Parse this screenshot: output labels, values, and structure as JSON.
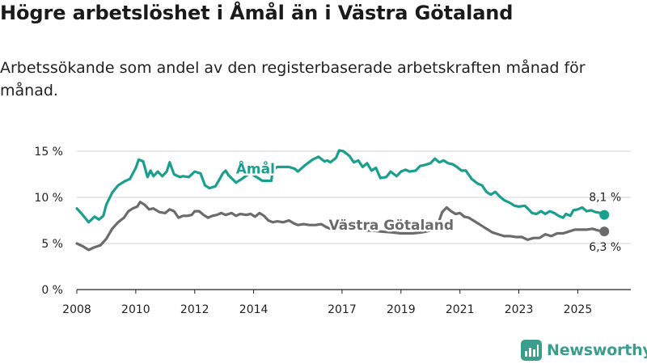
{
  "page": {
    "title": "Högre arbetslöshet i Åmål än i Västra Götaland",
    "subtitle": "Arbetssökande som andel av den registerbaserade arbetskraften månad för månad.",
    "brand": "Newsworthy"
  },
  "chart_data": {
    "type": "line",
    "title": "Högre arbetslöshet i Åmål än i Västra Götaland",
    "subtitle": "Arbetssökande som andel av den registerbaserade arbetskraften månad för månad.",
    "xlabel": "",
    "ylabel": "",
    "xlim": [
      2008,
      2026.8
    ],
    "ylim": [
      0,
      15
    ],
    "grid": true,
    "x_ticks": [
      {
        "value": 2008,
        "label": "2008"
      },
      {
        "value": 2010,
        "label": "2010"
      },
      {
        "value": 2012,
        "label": "2012"
      },
      {
        "value": 2014,
        "label": "2014"
      },
      {
        "value": 2017,
        "label": "2017"
      },
      {
        "value": 2019,
        "label": "2019"
      },
      {
        "value": 2021,
        "label": "2021"
      },
      {
        "value": 2023,
        "label": "2023"
      },
      {
        "value": 2025,
        "label": "2025"
      }
    ],
    "y_ticks": [
      {
        "value": 0,
        "label": "0 %"
      },
      {
        "value": 5,
        "label": "5 %"
      },
      {
        "value": 10,
        "label": "10 %"
      },
      {
        "value": 15,
        "label": "15 %"
      }
    ],
    "series": [
      {
        "name": "Åmål",
        "color": "#1a9f8f",
        "end_label": "8,1 %",
        "points": [
          [
            2008.0,
            8.8
          ],
          [
            2008.2,
            8.1
          ],
          [
            2008.4,
            7.3
          ],
          [
            2008.5,
            7.6
          ],
          [
            2008.6,
            7.9
          ],
          [
            2008.75,
            7.6
          ],
          [
            2008.9,
            8.0
          ],
          [
            2009.0,
            9.2
          ],
          [
            2009.2,
            10.5
          ],
          [
            2009.4,
            11.3
          ],
          [
            2009.6,
            11.7
          ],
          [
            2009.8,
            12.0
          ],
          [
            2010.0,
            13.2
          ],
          [
            2010.1,
            14.1
          ],
          [
            2010.25,
            13.9
          ],
          [
            2010.4,
            12.2
          ],
          [
            2010.5,
            12.9
          ],
          [
            2010.6,
            12.3
          ],
          [
            2010.75,
            12.8
          ],
          [
            2010.9,
            12.3
          ],
          [
            2011.05,
            12.8
          ],
          [
            2011.15,
            13.8
          ],
          [
            2011.3,
            12.5
          ],
          [
            2011.5,
            12.2
          ],
          [
            2011.6,
            12.3
          ],
          [
            2011.8,
            12.2
          ],
          [
            2012.0,
            12.8
          ],
          [
            2012.2,
            12.6
          ],
          [
            2012.35,
            11.3
          ],
          [
            2012.5,
            11.0
          ],
          [
            2012.7,
            11.2
          ],
          [
            2012.85,
            12.0
          ],
          [
            2012.95,
            12.6
          ],
          [
            2013.05,
            12.9
          ],
          [
            2013.15,
            12.4
          ],
          [
            2013.4,
            11.6
          ],
          [
            2013.6,
            12.0
          ],
          [
            2013.9,
            12.7
          ],
          [
            2014.0,
            12.4
          ],
          [
            2014.3,
            11.8
          ],
          [
            2014.6,
            11.8
          ],
          [
            2014.65,
            13.0
          ],
          [
            2014.8,
            13.3
          ],
          [
            2015.0,
            13.3
          ],
          [
            2015.2,
            13.3
          ],
          [
            2015.4,
            13.1
          ],
          [
            2015.5,
            12.8
          ],
          [
            2015.75,
            13.5
          ],
          [
            2016.0,
            14.1
          ],
          [
            2016.2,
            14.4
          ],
          [
            2016.4,
            13.9
          ],
          [
            2016.5,
            14.0
          ],
          [
            2016.6,
            13.8
          ],
          [
            2016.8,
            14.3
          ],
          [
            2016.9,
            15.1
          ],
          [
            2017.05,
            15.0
          ],
          [
            2017.25,
            14.5
          ],
          [
            2017.4,
            13.8
          ],
          [
            2017.55,
            14.0
          ],
          [
            2017.7,
            13.3
          ],
          [
            2017.85,
            13.7
          ],
          [
            2018.0,
            12.9
          ],
          [
            2018.15,
            13.2
          ],
          [
            2018.3,
            12.1
          ],
          [
            2018.5,
            12.2
          ],
          [
            2018.65,
            12.8
          ],
          [
            2018.85,
            12.3
          ],
          [
            2019.0,
            12.8
          ],
          [
            2019.15,
            13.0
          ],
          [
            2019.3,
            12.8
          ],
          [
            2019.5,
            12.9
          ],
          [
            2019.65,
            13.4
          ],
          [
            2019.8,
            13.5
          ],
          [
            2020.0,
            13.7
          ],
          [
            2020.15,
            14.2
          ],
          [
            2020.3,
            13.8
          ],
          [
            2020.45,
            14.0
          ],
          [
            2020.6,
            13.7
          ],
          [
            2020.75,
            13.6
          ],
          [
            2020.9,
            13.3
          ],
          [
            2021.05,
            12.9
          ],
          [
            2021.2,
            12.9
          ],
          [
            2021.4,
            12.0
          ],
          [
            2021.6,
            11.5
          ],
          [
            2021.75,
            11.3
          ],
          [
            2021.9,
            10.6
          ],
          [
            2022.05,
            10.3
          ],
          [
            2022.2,
            10.6
          ],
          [
            2022.35,
            10.1
          ],
          [
            2022.5,
            9.7
          ],
          [
            2022.7,
            9.4
          ],
          [
            2022.85,
            9.1
          ],
          [
            2023.0,
            9.0
          ],
          [
            2023.2,
            9.1
          ],
          [
            2023.3,
            8.8
          ],
          [
            2023.45,
            8.3
          ],
          [
            2023.6,
            8.2
          ],
          [
            2023.75,
            8.5
          ],
          [
            2023.9,
            8.2
          ],
          [
            2024.05,
            8.5
          ],
          [
            2024.2,
            8.3
          ],
          [
            2024.35,
            8.0
          ],
          [
            2024.5,
            7.8
          ],
          [
            2024.6,
            8.2
          ],
          [
            2024.75,
            8.0
          ],
          [
            2024.85,
            8.6
          ],
          [
            2025.0,
            8.7
          ],
          [
            2025.15,
            8.9
          ],
          [
            2025.3,
            8.5
          ],
          [
            2025.45,
            8.6
          ],
          [
            2025.6,
            8.4
          ],
          [
            2025.8,
            8.3
          ],
          [
            2025.9,
            8.1
          ]
        ]
      },
      {
        "name": "Västra Götaland",
        "color": "#6b6b6b",
        "end_label": "6,3 %",
        "points": [
          [
            2008.0,
            5.0
          ],
          [
            2008.2,
            4.7
          ],
          [
            2008.4,
            4.3
          ],
          [
            2008.6,
            4.6
          ],
          [
            2008.8,
            4.8
          ],
          [
            2009.0,
            5.5
          ],
          [
            2009.2,
            6.6
          ],
          [
            2009.4,
            7.3
          ],
          [
            2009.6,
            7.8
          ],
          [
            2009.75,
            8.5
          ],
          [
            2009.9,
            8.8
          ],
          [
            2010.05,
            9.0
          ],
          [
            2010.15,
            9.5
          ],
          [
            2010.3,
            9.2
          ],
          [
            2010.45,
            8.7
          ],
          [
            2010.6,
            8.8
          ],
          [
            2010.8,
            8.4
          ],
          [
            2011.0,
            8.3
          ],
          [
            2011.15,
            8.7
          ],
          [
            2011.3,
            8.5
          ],
          [
            2011.45,
            7.8
          ],
          [
            2011.6,
            8.0
          ],
          [
            2011.75,
            8.0
          ],
          [
            2011.9,
            8.1
          ],
          [
            2012.0,
            8.5
          ],
          [
            2012.15,
            8.5
          ],
          [
            2012.3,
            8.1
          ],
          [
            2012.45,
            7.8
          ],
          [
            2012.6,
            8.0
          ],
          [
            2012.75,
            8.1
          ],
          [
            2012.9,
            8.3
          ],
          [
            2013.05,
            8.1
          ],
          [
            2013.25,
            8.3
          ],
          [
            2013.4,
            8.0
          ],
          [
            2013.55,
            8.2
          ],
          [
            2013.75,
            8.1
          ],
          [
            2013.9,
            8.2
          ],
          [
            2014.05,
            7.9
          ],
          [
            2014.2,
            8.3
          ],
          [
            2014.35,
            8.0
          ],
          [
            2014.5,
            7.5
          ],
          [
            2014.65,
            7.3
          ],
          [
            2014.8,
            7.4
          ],
          [
            2015.0,
            7.3
          ],
          [
            2015.2,
            7.5
          ],
          [
            2015.35,
            7.2
          ],
          [
            2015.5,
            7.0
          ],
          [
            2015.7,
            7.1
          ],
          [
            2015.9,
            7.0
          ],
          [
            2016.1,
            7.0
          ],
          [
            2016.3,
            7.1
          ],
          [
            2016.45,
            6.8
          ],
          [
            2016.6,
            6.6
          ],
          [
            2016.8,
            6.7
          ],
          [
            2017.0,
            6.8
          ],
          [
            2017.2,
            6.7
          ],
          [
            2017.4,
            6.6
          ],
          [
            2017.6,
            6.5
          ],
          [
            2017.8,
            6.4
          ],
          [
            2018.0,
            6.4
          ],
          [
            2018.3,
            6.3
          ],
          [
            2018.7,
            6.2
          ],
          [
            2019.0,
            6.1
          ],
          [
            2019.4,
            6.1
          ],
          [
            2019.7,
            6.2
          ],
          [
            2020.0,
            6.4
          ],
          [
            2020.2,
            6.6
          ],
          [
            2020.4,
            8.4
          ],
          [
            2020.55,
            8.9
          ],
          [
            2020.7,
            8.5
          ],
          [
            2020.85,
            8.2
          ],
          [
            2021.0,
            8.3
          ],
          [
            2021.15,
            7.9
          ],
          [
            2021.3,
            7.8
          ],
          [
            2021.5,
            7.4
          ],
          [
            2021.7,
            7.0
          ],
          [
            2021.9,
            6.6
          ],
          [
            2022.1,
            6.2
          ],
          [
            2022.3,
            6.0
          ],
          [
            2022.5,
            5.8
          ],
          [
            2022.7,
            5.8
          ],
          [
            2022.9,
            5.7
          ],
          [
            2023.1,
            5.7
          ],
          [
            2023.3,
            5.4
          ],
          [
            2023.5,
            5.6
          ],
          [
            2023.7,
            5.6
          ],
          [
            2023.9,
            6.0
          ],
          [
            2024.1,
            5.8
          ],
          [
            2024.3,
            6.1
          ],
          [
            2024.5,
            6.1
          ],
          [
            2024.7,
            6.3
          ],
          [
            2024.9,
            6.5
          ],
          [
            2025.1,
            6.5
          ],
          [
            2025.3,
            6.5
          ],
          [
            2025.5,
            6.6
          ],
          [
            2025.7,
            6.4
          ],
          [
            2025.9,
            6.3
          ]
        ]
      }
    ]
  }
}
